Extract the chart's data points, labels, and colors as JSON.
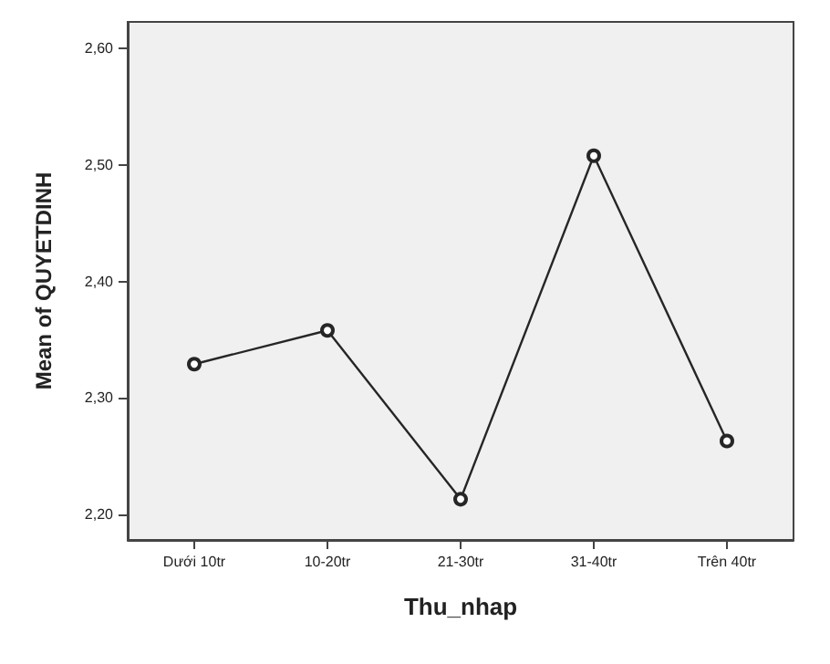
{
  "chart_data": {
    "type": "line",
    "xlabel": "Thu_nhap",
    "ylabel": "Mean of QUYETDINH",
    "categories": [
      "Dưới 10tr",
      "10-20tr",
      "21-30tr",
      "31-40tr",
      "Trên 40tr"
    ],
    "values": [
      2.329,
      2.358,
      2.213,
      2.508,
      2.263
    ],
    "color": "#262626",
    "marker": "circle",
    "line_style": "solid",
    "grid": false,
    "ylim": [
      2.178,
      2.623
    ],
    "yticks": [
      {
        "value": 2.2,
        "label": "2,20"
      },
      {
        "value": 2.3,
        "label": "2,30"
      },
      {
        "value": 2.4,
        "label": "2,40"
      },
      {
        "value": 2.5,
        "label": "2,50"
      },
      {
        "value": 2.6,
        "label": "2,60"
      }
    ]
  }
}
